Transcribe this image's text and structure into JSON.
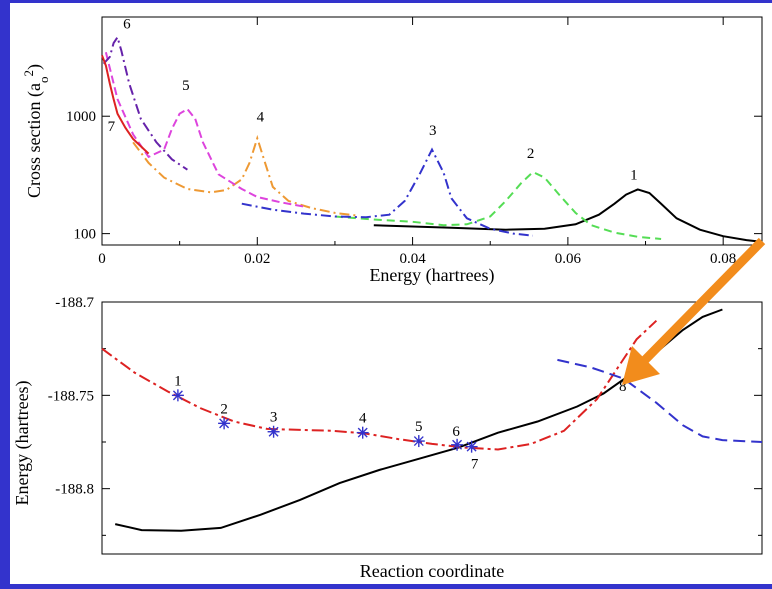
{
  "chart_data": [
    {
      "type": "line",
      "xlabel": "Energy (hartrees)",
      "ylabel_main": "Cross section (a",
      "ylabel_sub": "o",
      "ylabel_sup": "2",
      "ylabel_end": ")",
      "xlim": [
        0,
        0.085
      ],
      "ylim": [
        80,
        7000
      ],
      "yscale": "log",
      "xticks": [
        0,
        0.02,
        0.04,
        0.06,
        0.08
      ],
      "xtick_labels": [
        "0",
        "0.02",
        "0.04",
        "0.06",
        "0.08"
      ],
      "yticks": [
        100,
        1000
      ],
      "ytick_labels": [
        "100",
        "1000"
      ],
      "series": [
        {
          "color": "#000000",
          "dash": "",
          "x": [
            0.035,
            0.045,
            0.052,
            0.057,
            0.061,
            0.064,
            0.066,
            0.0675,
            0.069,
            0.0705,
            0.072,
            0.074,
            0.077,
            0.08,
            0.083,
            0.085
          ],
          "y": [
            118,
            112,
            108,
            110,
            120,
            145,
            180,
            215,
            238,
            222,
            180,
            135,
            108,
            95,
            88,
            85
          ]
        },
        {
          "color": "#55dd55",
          "dash": "8,5",
          "x": [
            0.03,
            0.035,
            0.04,
            0.044,
            0.047,
            0.05,
            0.052,
            0.054,
            0.0555,
            0.057,
            0.059,
            0.061,
            0.063,
            0.066,
            0.069,
            0.072
          ],
          "y": [
            140,
            132,
            126,
            118,
            120,
            140,
            190,
            270,
            335,
            300,
            210,
            150,
            118,
            102,
            94,
            90
          ]
        },
        {
          "color": "#3333cc",
          "dash": "10,4,2,4",
          "x": [
            0.018,
            0.022,
            0.026,
            0.03,
            0.034,
            0.037,
            0.039,
            0.041,
            0.0425,
            0.044,
            0.045,
            0.047,
            0.05,
            0.053,
            0.0555
          ],
          "y": [
            180,
            160,
            148,
            140,
            138,
            145,
            190,
            330,
            520,
            330,
            200,
            135,
            110,
            100,
            96
          ]
        },
        {
          "color": "#ee9933",
          "dash": "10,4,2,4",
          "x": [
            0.004,
            0.006,
            0.008,
            0.011,
            0.014,
            0.016,
            0.018,
            0.019,
            0.02,
            0.021,
            0.022,
            0.024,
            0.027,
            0.03,
            0.033
          ],
          "y": [
            600,
            400,
            300,
            240,
            225,
            235,
            290,
            400,
            650,
            400,
            250,
            190,
            165,
            150,
            142
          ]
        },
        {
          "color": "#dd44dd",
          "dash": "8,4",
          "x": [
            0.0005,
            0.002,
            0.004,
            0.006,
            0.008,
            0.009,
            0.01,
            0.011,
            0.012,
            0.013,
            0.015,
            0.018,
            0.02,
            0.023,
            0.026
          ],
          "y": [
            3500,
            1400,
            700,
            450,
            520,
            780,
            1050,
            1150,
            950,
            600,
            320,
            240,
            205,
            185,
            170
          ]
        },
        {
          "color": "#6622aa",
          "dash": "10,4,2,4",
          "x": [
            0.0002,
            0.001,
            0.0015,
            0.002,
            0.0025,
            0.0035,
            0.005,
            0.007,
            0.009,
            0.011
          ],
          "y": [
            2800,
            3200,
            4200,
            4700,
            3600,
            1900,
            950,
            600,
            430,
            350
          ]
        },
        {
          "color": "#dd2222",
          "dash": "",
          "x": [
            0.0,
            0.0005,
            0.001,
            0.0015,
            0.002,
            0.003,
            0.004,
            0.006
          ],
          "y": [
            3300,
            2700,
            1900,
            1400,
            1050,
            800,
            640,
            480
          ]
        }
      ],
      "labels": [
        {
          "text": "1",
          "x": 0.0685,
          "y": 290
        },
        {
          "text": "2",
          "x": 0.0552,
          "y": 440
        },
        {
          "text": "3",
          "x": 0.0426,
          "y": 690
        },
        {
          "text": "4",
          "x": 0.0204,
          "y": 900
        },
        {
          "text": "5",
          "x": 0.0108,
          "y": 1680
        },
        {
          "text": "6",
          "x": 0.0032,
          "y": 5600
        },
        {
          "text": "7",
          "x": 0.0012,
          "y": 750
        }
      ]
    },
    {
      "type": "line",
      "xlabel": "Reaction coordinate",
      "ylabel": "Energy (hartrees)",
      "xlim": [
        0,
        100
      ],
      "ylim": [
        -188.835,
        -188.7
      ],
      "yticks": [
        -188.7,
        -188.75,
        -188.8
      ],
      "ytick_labels": [
        "-188.7",
        "-188.75",
        "-188.8"
      ],
      "xticks": [],
      "series": [
        {
          "color": "#000000",
          "dash": "",
          "x": [
            2,
            6,
            12,
            18,
            24,
            30,
            36,
            42,
            48,
            54,
            60,
            66,
            72,
            76,
            80,
            84,
            88,
            91,
            94
          ],
          "y": [
            -188.819,
            -188.8222,
            -188.8225,
            -188.821,
            -188.814,
            -188.806,
            -188.797,
            -188.79,
            -188.784,
            -188.778,
            -188.77,
            -188.764,
            -188.756,
            -188.749,
            -188.739,
            -188.727,
            -188.715,
            -188.708,
            -188.704
          ]
        },
        {
          "color": "#dd2222",
          "dash": "12,4,3,4",
          "x": [
            0,
            5,
            10,
            15,
            20,
            25,
            30,
            35,
            40,
            45,
            50,
            55,
            60,
            65,
            70,
            75,
            78,
            81,
            84
          ],
          "y": [
            -188.725,
            -188.738,
            -188.748,
            -188.757,
            -188.764,
            -188.768,
            -188.7685,
            -188.769,
            -188.7705,
            -188.7735,
            -188.776,
            -188.778,
            -188.779,
            -188.776,
            -188.769,
            -188.752,
            -188.736,
            -188.72,
            -188.71
          ]
        },
        {
          "color": "#3333cc",
          "dash": "12,6",
          "x": [
            69,
            74,
            79,
            84,
            88,
            91,
            94,
            100
          ],
          "y": [
            -188.731,
            -188.735,
            -188.741,
            -188.754,
            -188.766,
            -188.772,
            -188.774,
            -188.775
          ]
        }
      ],
      "points": [
        {
          "label": "1",
          "x": 11.5,
          "y": -188.75
        },
        {
          "label": "2",
          "x": 18.5,
          "y": -188.765
        },
        {
          "label": "3",
          "x": 26.0,
          "y": -188.7695
        },
        {
          "label": "4",
          "x": 39.5,
          "y": -188.77
        },
        {
          "label": "5",
          "x": 48.0,
          "y": -188.7745
        },
        {
          "label": "6",
          "x": 53.8,
          "y": -188.7765
        },
        {
          "label": "7",
          "x": 56.0,
          "y": -188.7775
        },
        {
          "label": "8",
          "x": 78.0,
          "y": -188.737
        }
      ]
    }
  ],
  "annotation": {
    "color": "#f28c1c"
  }
}
